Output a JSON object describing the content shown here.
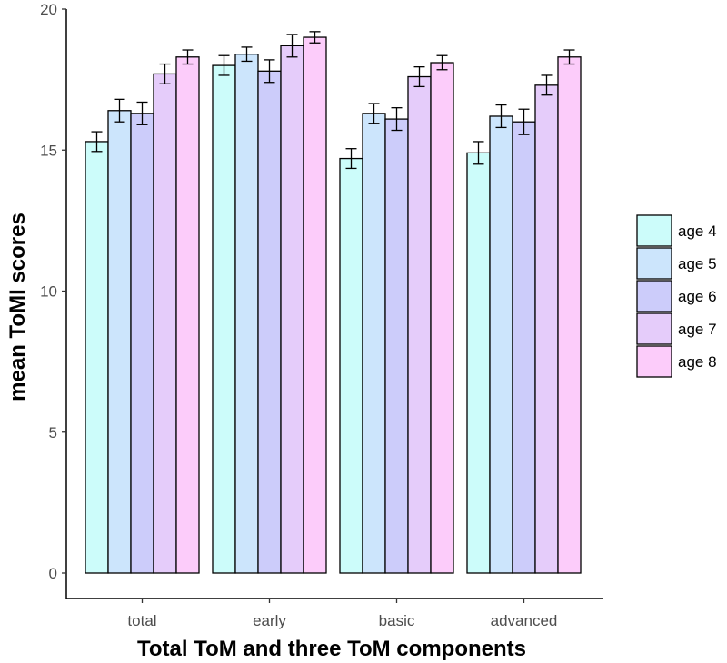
{
  "chart_data": {
    "type": "bar",
    "categories": [
      "total",
      "early",
      "basic",
      "advanced"
    ],
    "series": [
      {
        "name": "age 4",
        "color": "#ccfcfa",
        "values": [
          15.3,
          18.0,
          14.7,
          14.9
        ],
        "errors": [
          0.35,
          0.35,
          0.35,
          0.4
        ]
      },
      {
        "name": "age 5",
        "color": "#cce5fc",
        "values": [
          16.4,
          18.4,
          16.3,
          16.2
        ],
        "errors": [
          0.4,
          0.25,
          0.35,
          0.4
        ]
      },
      {
        "name": "age 6",
        "color": "#ccccfa",
        "values": [
          16.3,
          17.8,
          16.1,
          16.0
        ],
        "errors": [
          0.4,
          0.4,
          0.4,
          0.45
        ]
      },
      {
        "name": "age 7",
        "color": "#e5ccfa",
        "values": [
          17.7,
          18.7,
          17.6,
          17.3
        ],
        "errors": [
          0.35,
          0.4,
          0.35,
          0.35
        ]
      },
      {
        "name": "age 8",
        "color": "#fcccfa",
        "values": [
          18.3,
          19.0,
          18.1,
          18.3
        ],
        "errors": [
          0.25,
          0.2,
          0.25,
          0.25
        ]
      }
    ],
    "ylim": [
      0,
      20
    ],
    "yticks": [
      0,
      5,
      10,
      15,
      20
    ],
    "xlabel": "Total ToM and three ToM components",
    "ylabel": "mean ToMI scores",
    "grid": false,
    "legend_position": "right",
    "error_bars": true
  }
}
